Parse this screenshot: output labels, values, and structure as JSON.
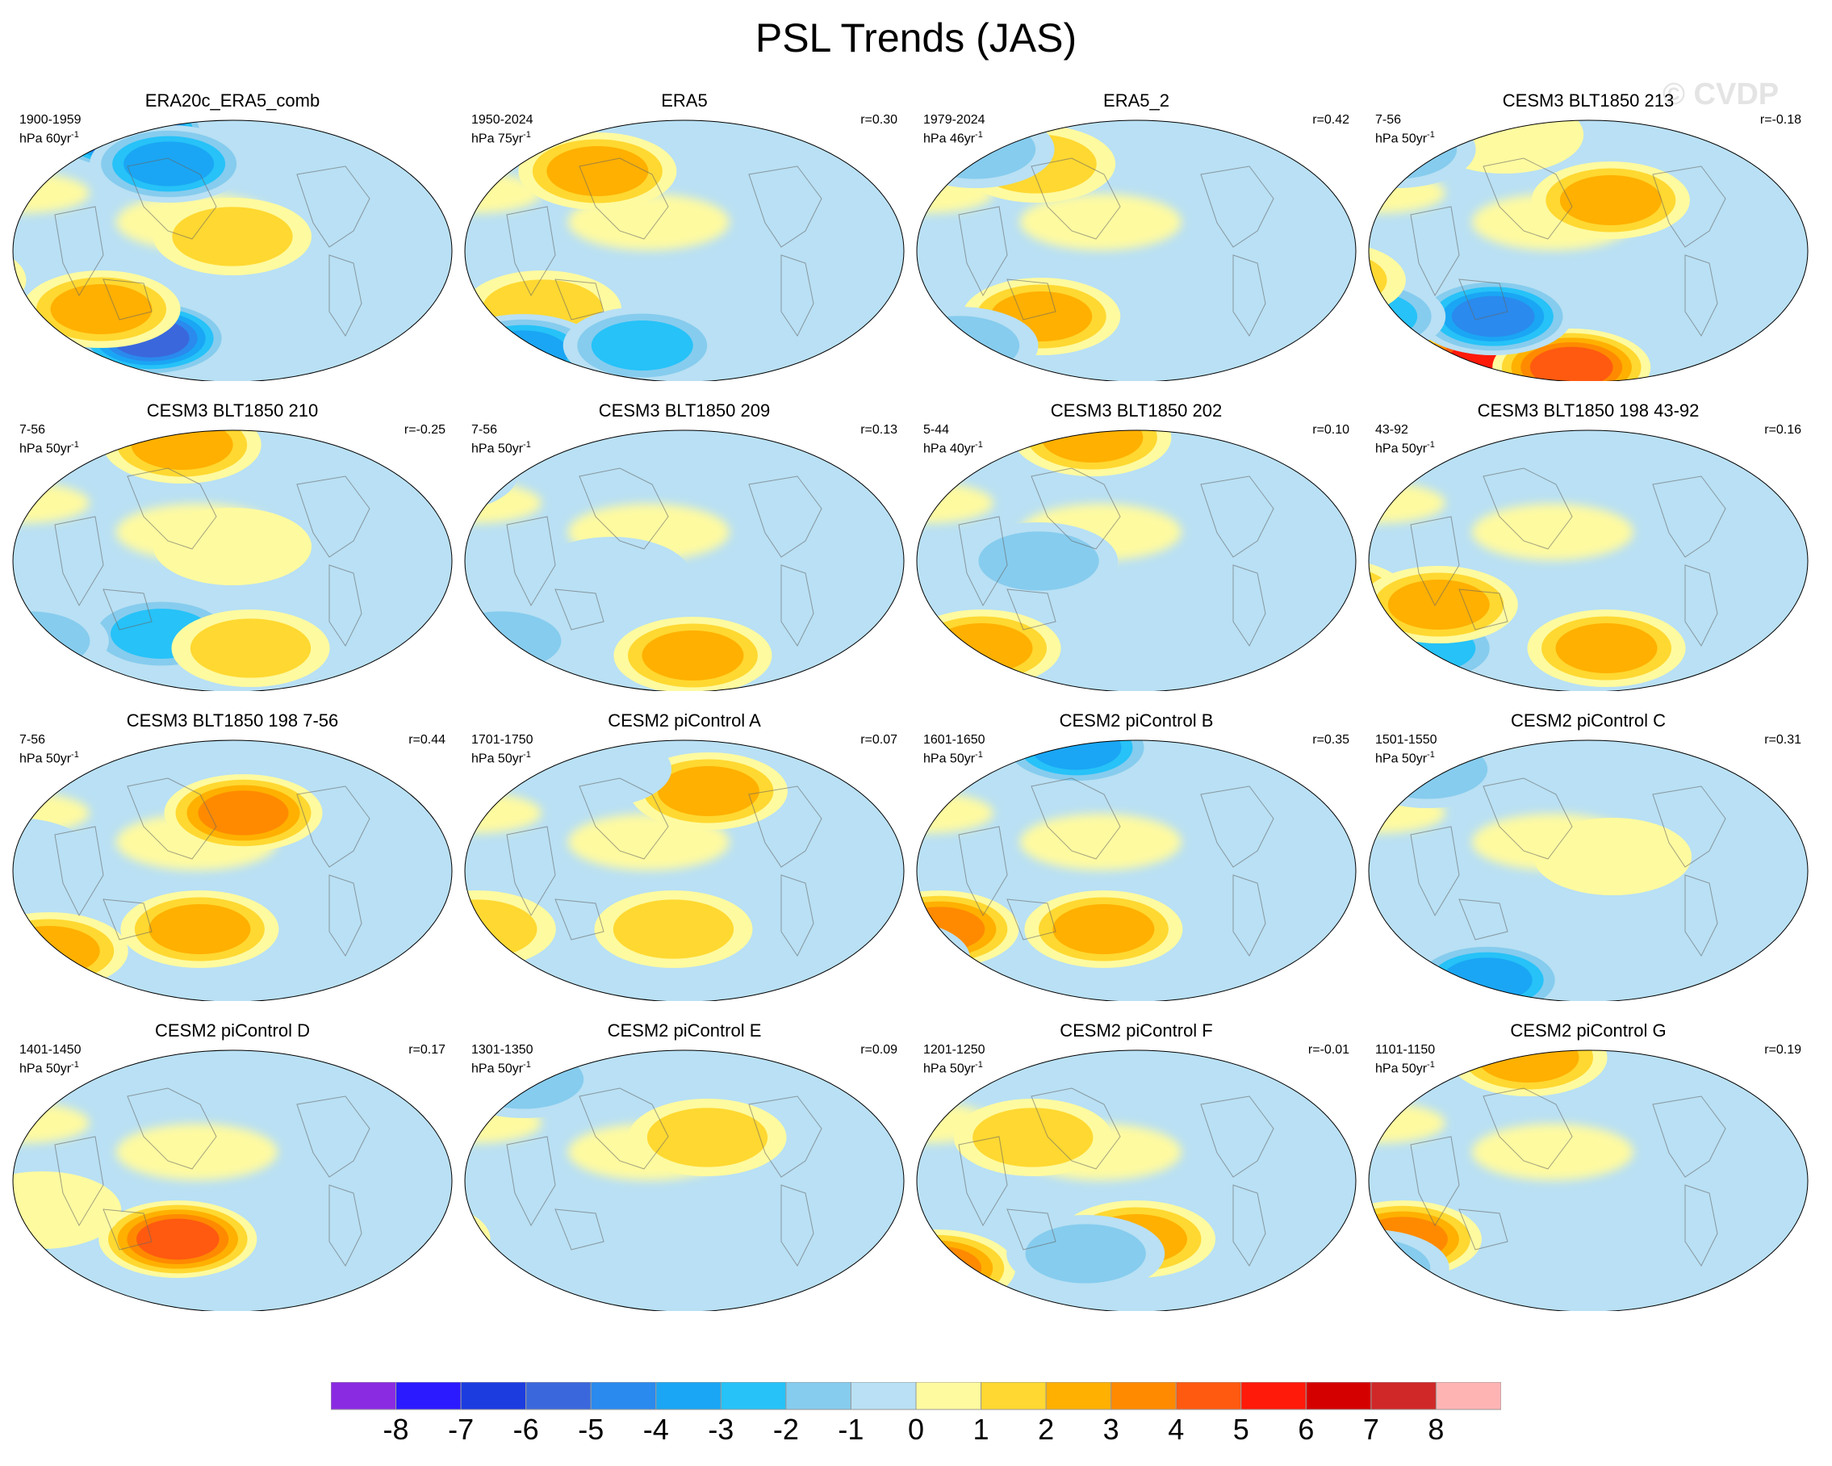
{
  "title": "PSL Trends (JAS)",
  "watermark": "© CVDP",
  "panels": [
    {
      "title": "ERA20c_ERA5_comb",
      "years": "1900-1959",
      "units": "hPa 60yr",
      "r": ""
    },
    {
      "title": "ERA5",
      "years": "1950-2024",
      "units": "hPa 75yr",
      "r": "r=0.30"
    },
    {
      "title": "ERA5_2",
      "years": "1979-2024",
      "units": "hPa 46yr",
      "r": "r=0.42"
    },
    {
      "title": "CESM3 BLT1850 213",
      "years": "7-56",
      "units": "hPa 50yr",
      "r": "r=-0.18"
    },
    {
      "title": "CESM3 BLT1850 210",
      "years": "7-56",
      "units": "hPa 50yr",
      "r": "r=-0.25"
    },
    {
      "title": "CESM3 BLT1850 209",
      "years": "7-56",
      "units": "hPa 50yr",
      "r": "r=0.13"
    },
    {
      "title": "CESM3 BLT1850 202",
      "years": "5-44",
      "units": "hPa 40yr",
      "r": "r=0.10"
    },
    {
      "title": "CESM3 BLT1850 198 43-92",
      "years": "43-92",
      "units": "hPa 50yr",
      "r": "r=0.16"
    },
    {
      "title": "CESM3 BLT1850 198 7-56",
      "years": "7-56",
      "units": "hPa 50yr",
      "r": "r=0.44"
    },
    {
      "title": "CESM2 piControl A",
      "years": "1701-1750",
      "units": "hPa 50yr",
      "r": "r=0.07"
    },
    {
      "title": "CESM2 piControl B",
      "years": "1601-1650",
      "units": "hPa 50yr",
      "r": "r=0.35"
    },
    {
      "title": "CESM2 piControl C",
      "years": "1501-1550",
      "units": "hPa 50yr",
      "r": "r=0.31"
    },
    {
      "title": "CESM2 piControl D",
      "years": "1401-1450",
      "units": "hPa 50yr",
      "r": "r=0.17"
    },
    {
      "title": "CESM2 piControl E",
      "years": "1301-1350",
      "units": "hPa 50yr",
      "r": "r=0.09"
    },
    {
      "title": "CESM2 piControl F",
      "years": "1201-1250",
      "units": "hPa 50yr",
      "r": "r=-0.01"
    },
    {
      "title": "CESM2 piControl G",
      "years": "1101-1150",
      "units": "hPa 50yr",
      "r": "r=0.19"
    }
  ],
  "units_superscript": "-1",
  "colorbar": {
    "colors": [
      "#8a2be2",
      "#2b1aff",
      "#1c3ce0",
      "#3a68dc",
      "#2a8aee",
      "#1aa6f4",
      "#26c2f8",
      "#86ccee",
      "#b9e0f4",
      "#fefaa0",
      "#ffd831",
      "#ffb000",
      "#ff8a00",
      "#ff5a10",
      "#ff1a0a",
      "#d40000",
      "#d02828",
      "#ffb4b4"
    ],
    "labels": [
      "-8",
      "-7",
      "-6",
      "-5",
      "-4",
      "-3",
      "-2",
      "-1",
      "0",
      "1",
      "2",
      "3",
      "4",
      "5",
      "6",
      "7",
      "8"
    ]
  },
  "chart_data": {
    "type": "heatmap",
    "title": "PSL Trends (JAS)",
    "variable": "sea level pressure trend",
    "projection": "global map (Robinson-like)",
    "color_levels": [
      -8,
      -7,
      -6,
      -5,
      -4,
      -3,
      -2,
      -1,
      0,
      1,
      2,
      3,
      4,
      5,
      6,
      7,
      8
    ],
    "panels": [
      {
        "name": "ERA20c_ERA5_comb",
        "period": "1900-1959",
        "units": "hPa 60yr-1",
        "r": null,
        "blobs": [
          {
            "lat": 82,
            "lon": -60,
            "v": -8
          },
          {
            "lat": -65,
            "lon": -110,
            "v": -8
          },
          {
            "lat": -60,
            "lon": 60,
            "v": -6
          },
          {
            "lat": 60,
            "lon": 80,
            "v": -4
          },
          {
            "lat": -40,
            "lon": -150,
            "v": 5
          },
          {
            "lat": -40,
            "lon": 30,
            "v": 3
          },
          {
            "lat": 10,
            "lon": 150,
            "v": 2
          },
          {
            "lat": -20,
            "lon": -90,
            "v": 1
          }
        ]
      },
      {
        "name": "ERA5",
        "period": "1950-2024",
        "units": "hPa 75yr-1",
        "r": 0.3,
        "blobs": [
          {
            "lat": 55,
            "lon": 60,
            "v": 3
          },
          {
            "lat": -40,
            "lon": -120,
            "v": 3
          },
          {
            "lat": -40,
            "lon": 20,
            "v": 2
          },
          {
            "lat": -70,
            "lon": -60,
            "v": -4
          },
          {
            "lat": -65,
            "lon": 100,
            "v": -3
          },
          {
            "lat": 10,
            "lon": -160,
            "v": 1
          },
          {
            "lat": 65,
            "lon": -150,
            "v": -1
          }
        ]
      },
      {
        "name": "ERA5_2",
        "period": "1979-2024",
        "units": "hPa 46yr-1",
        "r": 0.42,
        "blobs": [
          {
            "lat": 35,
            "lon": -170,
            "v": 3
          },
          {
            "lat": -40,
            "lon": -130,
            "v": 4
          },
          {
            "lat": -45,
            "lon": 60,
            "v": 3
          },
          {
            "lat": 60,
            "lon": 40,
            "v": 2
          },
          {
            "lat": -65,
            "lon": -60,
            "v": -2
          },
          {
            "lat": 70,
            "lon": -60,
            "v": -2
          }
        ]
      },
      {
        "name": "CESM3 BLT1850 213",
        "period": "7-56",
        "units": "hPa 50yr-1",
        "r": -0.18,
        "blobs": [
          {
            "lat": -75,
            "lon": 0,
            "v": 6
          },
          {
            "lat": -80,
            "lon": 120,
            "v": 5
          },
          {
            "lat": -45,
            "lon": 60,
            "v": -5
          },
          {
            "lat": -45,
            "lon": -60,
            "v": -3
          },
          {
            "lat": 35,
            "lon": 170,
            "v": 3
          },
          {
            "lat": -20,
            "lon": -70,
            "v": 2
          },
          {
            "lat": 80,
            "lon": 0,
            "v": 1
          },
          {
            "lat": 70,
            "lon": -100,
            "v": -2
          }
        ]
      },
      {
        "name": "CESM3 BLT1850 210",
        "period": "7-56",
        "units": "hPa 50yr-1",
        "r": -0.25,
        "blobs": [
          {
            "lat": 80,
            "lon": 60,
            "v": 3
          },
          {
            "lat": -60,
            "lon": -150,
            "v": 4
          },
          {
            "lat": -50,
            "lon": 80,
            "v": -3
          },
          {
            "lat": -55,
            "lon": -60,
            "v": -2
          },
          {
            "lat": -60,
            "lon": 170,
            "v": 2
          },
          {
            "lat": 10,
            "lon": 150,
            "v": 1
          }
        ]
      },
      {
        "name": "CESM3 BLT1850 209",
        "period": "7-56",
        "units": "hPa 50yr-1",
        "r": 0.13,
        "blobs": [
          {
            "lat": -20,
            "lon": -110,
            "v": 4
          },
          {
            "lat": -65,
            "lon": 160,
            "v": 3
          },
          {
            "lat": 40,
            "lon": -175,
            "v": 2
          },
          {
            "lat": -55,
            "lon": -40,
            "v": -2
          },
          {
            "lat": 60,
            "lon": -120,
            "v": -3
          },
          {
            "lat": -10,
            "lon": 90,
            "v": -1
          }
        ]
      },
      {
        "name": "CESM3 BLT1850 202",
        "period": "5-44",
        "units": "hPa 40yr-1",
        "r": 0.1,
        "blobs": [
          {
            "lat": -50,
            "lon": -170,
            "v": 4
          },
          {
            "lat": -60,
            "lon": -20,
            "v": 3
          },
          {
            "lat": 85,
            "lon": 40,
            "v": 3
          },
          {
            "lat": 50,
            "lon": -130,
            "v": -4
          },
          {
            "lat": 35,
            "lon": -170,
            "v": 2
          },
          {
            "lat": 0,
            "lon": 70,
            "v": -2
          }
        ]
      },
      {
        "name": "CESM3 BLT1850 198 43-92",
        "period": "43-92",
        "units": "hPa 50yr-1",
        "r": 0.16,
        "blobs": [
          {
            "lat": -50,
            "lon": -150,
            "v": -5
          },
          {
            "lat": -60,
            "lon": -30,
            "v": -3
          },
          {
            "lat": -25,
            "lon": -70,
            "v": 3
          },
          {
            "lat": -30,
            "lon": 20,
            "v": 3
          },
          {
            "lat": -60,
            "lon": 170,
            "v": 3
          },
          {
            "lat": 60,
            "lon": -140,
            "v": 1
          }
        ]
      },
      {
        "name": "CESM3 BLT1850 198 7-56",
        "period": "7-56",
        "units": "hPa 50yr-1",
        "r": 0.44,
        "blobs": [
          {
            "lat": 40,
            "lon": 160,
            "v": 4
          },
          {
            "lat": -30,
            "lon": -170,
            "v": 5
          },
          {
            "lat": -50,
            "lon": -110,
            "v": -6
          },
          {
            "lat": -55,
            "lon": -40,
            "v": 3
          },
          {
            "lat": -40,
            "lon": 120,
            "v": 3
          },
          {
            "lat": 10,
            "lon": -30,
            "v": -1
          }
        ]
      },
      {
        "name": "CESM2 piControl A",
        "period": "1701-1750",
        "units": "hPa 50yr-1",
        "r": 0.07,
        "blobs": [
          {
            "lat": 55,
            "lon": 175,
            "v": 3
          },
          {
            "lat": -40,
            "lon": 140,
            "v": 2
          },
          {
            "lat": -40,
            "lon": -40,
            "v": 2
          },
          {
            "lat": 20,
            "lon": -150,
            "v": -1
          },
          {
            "lat": 70,
            "lon": 30,
            "v": -1
          }
        ]
      },
      {
        "name": "CESM2 piControl B",
        "period": "1601-1650",
        "units": "hPa 50yr-1",
        "r": 0.35,
        "blobs": [
          {
            "lat": 85,
            "lon": 0,
            "v": -4
          },
          {
            "lat": -40,
            "lon": -30,
            "v": 4
          },
          {
            "lat": -40,
            "lon": 120,
            "v": 3
          },
          {
            "lat": 50,
            "lon": -170,
            "v": 2
          },
          {
            "lat": -60,
            "lon": -120,
            "v": -2
          }
        ]
      },
      {
        "name": "CESM2 piControl C",
        "period": "1501-1550",
        "units": "hPa 50yr-1",
        "r": 0.31,
        "blobs": [
          {
            "lat": -75,
            "lon": 0,
            "v": -4
          },
          {
            "lat": -40,
            "lon": -110,
            "v": 4
          },
          {
            "lat": 70,
            "lon": -60,
            "v": -2
          },
          {
            "lat": 10,
            "lon": 170,
            "v": 1
          }
        ]
      },
      {
        "name": "CESM2 piControl D",
        "period": "1401-1450",
        "units": "hPa 50yr-1",
        "r": 0.17,
        "blobs": [
          {
            "lat": -40,
            "lon": 100,
            "v": 5
          },
          {
            "lat": -55,
            "lon": -170,
            "v": 3
          },
          {
            "lat": -40,
            "lon": -70,
            "v": -2
          },
          {
            "lat": 60,
            "lon": -170,
            "v": 2
          },
          {
            "lat": -20,
            "lon": -10,
            "v": 1
          }
        ]
      },
      {
        "name": "CESM2 piControl E",
        "period": "1301-1350",
        "units": "hPa 50yr-1",
        "r": 0.09,
        "blobs": [
          {
            "lat": -50,
            "lon": -160,
            "v": -4
          },
          {
            "lat": -40,
            "lon": -100,
            "v": 2
          },
          {
            "lat": 70,
            "lon": -60,
            "v": -2
          },
          {
            "lat": 30,
            "lon": 170,
            "v": 2
          },
          {
            "lat": 10,
            "lon": -140,
            "v": -1
          }
        ]
      },
      {
        "name": "CESM2 piControl F",
        "period": "1201-1250",
        "units": "hPa 50yr-1",
        "r": -0.01,
        "blobs": [
          {
            "lat": -60,
            "lon": -70,
            "v": 4
          },
          {
            "lat": -40,
            "lon": 150,
            "v": 3
          },
          {
            "lat": -50,
            "lon": 100,
            "v": -2
          },
          {
            "lat": 30,
            "lon": 60,
            "v": 2
          },
          {
            "lat": 10,
            "lon": -160,
            "v": -1
          }
        ]
      },
      {
        "name": "CESM2 piControl G",
        "period": "1101-1150",
        "units": "hPa 50yr-1",
        "r": 0.19,
        "blobs": [
          {
            "lat": 85,
            "lon": 0,
            "v": 3
          },
          {
            "lat": -40,
            "lon": -150,
            "v": 4
          },
          {
            "lat": -40,
            "lon": -20,
            "v": 4
          },
          {
            "lat": -60,
            "lon": -90,
            "v": -2
          },
          {
            "lat": 30,
            "lon": -150,
            "v": -1
          }
        ]
      }
    ]
  }
}
